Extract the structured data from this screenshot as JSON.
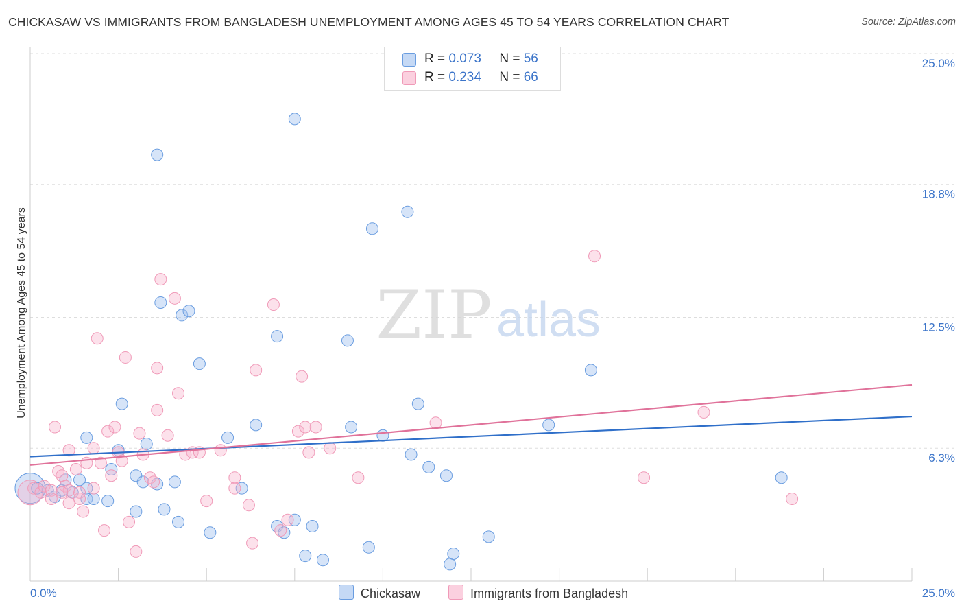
{
  "title": "CHICKASAW VS IMMIGRANTS FROM BANGLADESH UNEMPLOYMENT AMONG AGES 45 TO 54 YEARS CORRELATION CHART",
  "source": "Source: ZipAtlas.com",
  "watermark": {
    "zip": "ZIP",
    "atlas": "atlas"
  },
  "legend": {
    "rows": [
      {
        "r_label": "R = ",
        "r_value": "0.073",
        "n_label": "N = ",
        "n_value": "56"
      },
      {
        "r_label": "R = ",
        "r_value": "0.234",
        "n_label": "N = ",
        "n_value": "66"
      }
    ]
  },
  "chart_data": {
    "type": "scatter",
    "title": "CHICKASAW VS IMMIGRANTS FROM BANGLADESH UNEMPLOYMENT AMONG AGES 45 TO 54 YEARS CORRELATION CHART",
    "xlabel": "",
    "ylabel": "Unemployment Among Ages 45 to 54 years",
    "xlim": [
      0,
      25
    ],
    "ylim": [
      0,
      25
    ],
    "x_tick_labels": [
      "0.0%",
      "25.0%"
    ],
    "y_ticks": [
      6.3,
      12.5,
      18.8,
      25.0
    ],
    "y_tick_labels": [
      "6.3%",
      "12.5%",
      "18.8%",
      "25.0%"
    ],
    "grid": true,
    "legend_position": "top-center",
    "colors": {
      "chickasaw": "#6a9de0",
      "bangladesh": "#f09ab8",
      "chickasaw_line": "#2f6fc9",
      "bangladesh_line": "#e0729a",
      "tick_label": "#3b74c9"
    },
    "series": [
      {
        "name": "Chickasaw",
        "R": 0.073,
        "N": 56,
        "trend": {
          "x": [
            0,
            25
          ],
          "y": [
            5.9,
            7.8
          ]
        },
        "points": [
          [
            0.2,
            4.4
          ],
          [
            0.5,
            4.3
          ],
          [
            0.9,
            4.3
          ],
          [
            0.7,
            4.0
          ],
          [
            1.0,
            4.8
          ],
          [
            1.2,
            4.2
          ],
          [
            1.4,
            4.8
          ],
          [
            1.6,
            4.4
          ],
          [
            1.6,
            3.9
          ],
          [
            1.8,
            3.9
          ],
          [
            1.6,
            6.8
          ],
          [
            2.3,
            5.3
          ],
          [
            2.5,
            6.2
          ],
          [
            2.6,
            8.4
          ],
          [
            3.0,
            3.3
          ],
          [
            3.0,
            5.0
          ],
          [
            3.2,
            4.7
          ],
          [
            3.3,
            6.5
          ],
          [
            3.6,
            4.6
          ],
          [
            3.7,
            13.2
          ],
          [
            3.8,
            3.4
          ],
          [
            4.1,
            4.7
          ],
          [
            4.2,
            2.8
          ],
          [
            4.3,
            12.6
          ],
          [
            4.5,
            12.8
          ],
          [
            4.8,
            10.3
          ],
          [
            5.1,
            2.3
          ],
          [
            5.6,
            6.8
          ],
          [
            6.0,
            4.4
          ],
          [
            6.4,
            7.4
          ],
          [
            7.0,
            11.6
          ],
          [
            7.0,
            2.6
          ],
          [
            7.2,
            2.3
          ],
          [
            7.5,
            2.9
          ],
          [
            7.5,
            21.9
          ],
          [
            7.8,
            1.2
          ],
          [
            8.0,
            2.6
          ],
          [
            8.3,
            1.0
          ],
          [
            9.0,
            11.4
          ],
          [
            9.1,
            7.3
          ],
          [
            9.6,
            1.6
          ],
          [
            9.7,
            16.7
          ],
          [
            10.0,
            6.9
          ],
          [
            10.7,
            17.5
          ],
          [
            10.8,
            6.0
          ],
          [
            11.0,
            8.4
          ],
          [
            11.3,
            5.4
          ],
          [
            11.8,
            5.0
          ],
          [
            11.9,
            0.8
          ],
          [
            12.0,
            1.3
          ],
          [
            13.0,
            2.1
          ],
          [
            14.7,
            7.4
          ],
          [
            15.9,
            10.0
          ],
          [
            21.3,
            4.9
          ],
          [
            3.6,
            20.2
          ],
          [
            2.2,
            3.8
          ]
        ]
      },
      {
        "name": "Immigrants from Bangladesh",
        "R": 0.234,
        "N": 66,
        "trend": {
          "x": [
            0,
            25
          ],
          "y": [
            5.5,
            9.3
          ]
        },
        "points": [
          [
            0.1,
            4.4
          ],
          [
            0.3,
            4.2
          ],
          [
            0.4,
            4.5
          ],
          [
            0.6,
            4.3
          ],
          [
            0.6,
            3.9
          ],
          [
            0.7,
            7.3
          ],
          [
            0.8,
            5.2
          ],
          [
            0.9,
            5.0
          ],
          [
            1.0,
            4.5
          ],
          [
            1.1,
            4.3
          ],
          [
            1.1,
            3.7
          ],
          [
            1.1,
            6.2
          ],
          [
            1.3,
            5.3
          ],
          [
            1.4,
            3.9
          ],
          [
            1.4,
            4.2
          ],
          [
            1.5,
            3.3
          ],
          [
            1.6,
            5.6
          ],
          [
            1.8,
            4.4
          ],
          [
            1.8,
            6.3
          ],
          [
            1.9,
            11.5
          ],
          [
            2.0,
            5.6
          ],
          [
            2.1,
            2.4
          ],
          [
            2.2,
            7.1
          ],
          [
            2.3,
            5.0
          ],
          [
            2.4,
            7.3
          ],
          [
            2.5,
            6.1
          ],
          [
            2.6,
            5.7
          ],
          [
            2.7,
            10.6
          ],
          [
            2.8,
            2.8
          ],
          [
            3.0,
            1.4
          ],
          [
            3.1,
            7.0
          ],
          [
            3.2,
            6.0
          ],
          [
            3.4,
            4.9
          ],
          [
            3.5,
            4.7
          ],
          [
            3.6,
            10.1
          ],
          [
            3.6,
            8.1
          ],
          [
            3.7,
            14.3
          ],
          [
            3.9,
            6.9
          ],
          [
            4.1,
            13.4
          ],
          [
            4.2,
            8.9
          ],
          [
            4.4,
            6.0
          ],
          [
            4.6,
            6.1
          ],
          [
            4.8,
            6.1
          ],
          [
            5.0,
            3.8
          ],
          [
            5.4,
            6.2
          ],
          [
            5.8,
            4.9
          ],
          [
            5.8,
            4.4
          ],
          [
            6.2,
            3.6
          ],
          [
            6.3,
            1.8
          ],
          [
            6.4,
            10.0
          ],
          [
            6.9,
            13.1
          ],
          [
            7.1,
            2.4
          ],
          [
            7.3,
            2.9
          ],
          [
            7.6,
            7.1
          ],
          [
            7.7,
            9.7
          ],
          [
            7.8,
            7.3
          ],
          [
            7.9,
            6.1
          ],
          [
            8.1,
            7.3
          ],
          [
            8.5,
            6.3
          ],
          [
            9.3,
            4.9
          ],
          [
            11.5,
            7.5
          ],
          [
            16.0,
            15.4
          ],
          [
            17.4,
            4.9
          ],
          [
            19.1,
            8.0
          ],
          [
            21.6,
            3.9
          ],
          [
            0.9,
            4.2
          ]
        ]
      }
    ]
  },
  "bottom_legend": [
    {
      "label": "Chickasaw"
    },
    {
      "label": "Immigrants from Bangladesh"
    }
  ]
}
